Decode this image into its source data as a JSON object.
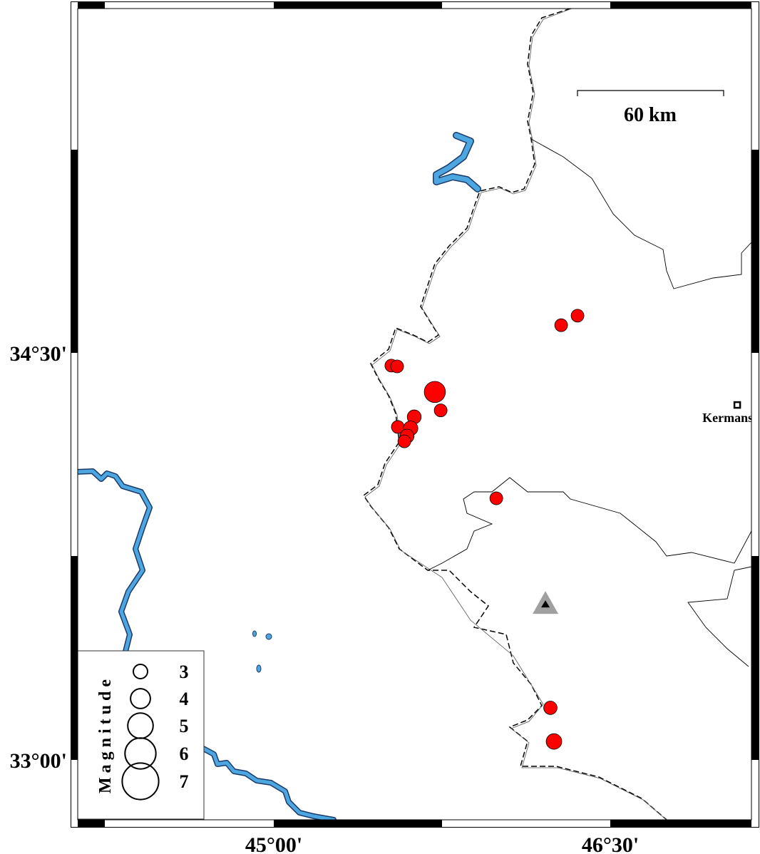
{
  "map": {
    "region": {
      "lon_min": 44.235,
      "lon_max": 47.07,
      "lat_min": 32.77,
      "lat_max": 35.76
    },
    "axes": {
      "x_ticks": [
        {
          "lon": 45.0,
          "label": "45°00'"
        },
        {
          "lon": 46.5,
          "label": "46°30'"
        }
      ],
      "y_ticks": [
        {
          "lat": 34.5,
          "label": "34°30'"
        },
        {
          "lat": 33.0,
          "label": "33°00'"
        }
      ]
    },
    "scale_bar": {
      "label": "60 km"
    },
    "colors": {
      "event_fill": "#ff0000",
      "water": "#4da6e0",
      "station": "#a0a0a0"
    },
    "events": [
      {
        "lon": 45.524,
        "lat": 34.453,
        "mag": 3.0
      },
      {
        "lon": 45.55,
        "lat": 34.45,
        "mag": 3.0
      },
      {
        "lon": 45.718,
        "lat": 34.356,
        "mag": 4.5
      },
      {
        "lon": 45.744,
        "lat": 34.288,
        "mag": 3.0
      },
      {
        "lon": 45.626,
        "lat": 34.264,
        "mag": 3.2
      },
      {
        "lon": 45.553,
        "lat": 34.227,
        "mag": 3.0
      },
      {
        "lon": 45.61,
        "lat": 34.222,
        "mag": 3.3
      },
      {
        "lon": 45.594,
        "lat": 34.193,
        "mag": 3.2
      },
      {
        "lon": 45.582,
        "lat": 34.174,
        "mag": 3.0
      },
      {
        "lon": 46.281,
        "lat": 34.602,
        "mag": 3.0
      },
      {
        "lon": 46.354,
        "lat": 34.637,
        "mag": 3.0
      },
      {
        "lon": 45.992,
        "lat": 33.964,
        "mag": 3.0
      },
      {
        "lon": 46.233,
        "lat": 33.192,
        "mag": 3.1
      },
      {
        "lon": 46.249,
        "lat": 33.068,
        "mag": 3.5
      }
    ],
    "city": {
      "name": "Kermanshah",
      "lon": 47.066,
      "lat": 34.308
    },
    "station": {
      "lon": 46.211,
      "lat": 33.575,
      "icon": "triangle-icon"
    },
    "legend": {
      "title": "Magnitude",
      "magnitudes": [
        "3",
        "4",
        "5",
        "6",
        "7"
      ]
    }
  }
}
